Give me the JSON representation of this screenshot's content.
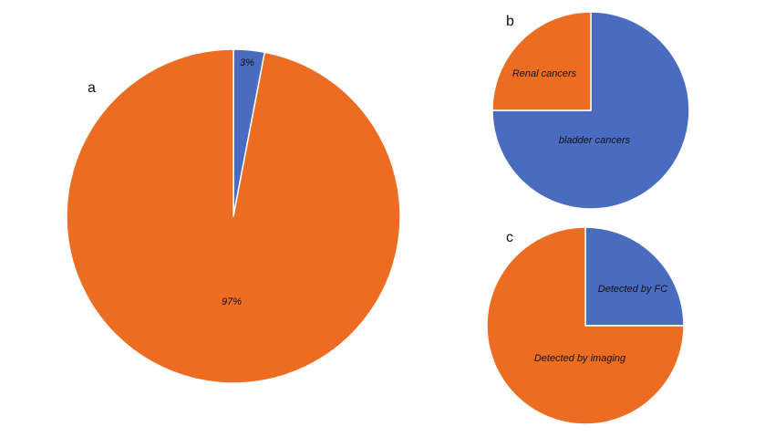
{
  "colors": {
    "blue": "#4a6cc0",
    "orange": "#ec6c22",
    "separator": "#ffffff"
  },
  "chart_data": [
    {
      "type": "pie",
      "panel": "a",
      "slices": [
        {
          "label": "3%",
          "value": 3,
          "color": "#4a6cc0"
        },
        {
          "label": "97%",
          "value": 97,
          "color": "#ec6c22"
        }
      ]
    },
    {
      "type": "pie",
      "panel": "b",
      "slices": [
        {
          "label": "bladder cancers",
          "value": 75,
          "color": "#4a6cc0"
        },
        {
          "label": "Renal cancers",
          "value": 25,
          "color": "#ec6c22"
        }
      ]
    },
    {
      "type": "pie",
      "panel": "c",
      "slices": [
        {
          "label": "Detected by FC",
          "value": 25,
          "color": "#4a6cc0"
        },
        {
          "label": "Detected by imaging",
          "value": 75,
          "color": "#ec6c22"
        }
      ]
    }
  ]
}
